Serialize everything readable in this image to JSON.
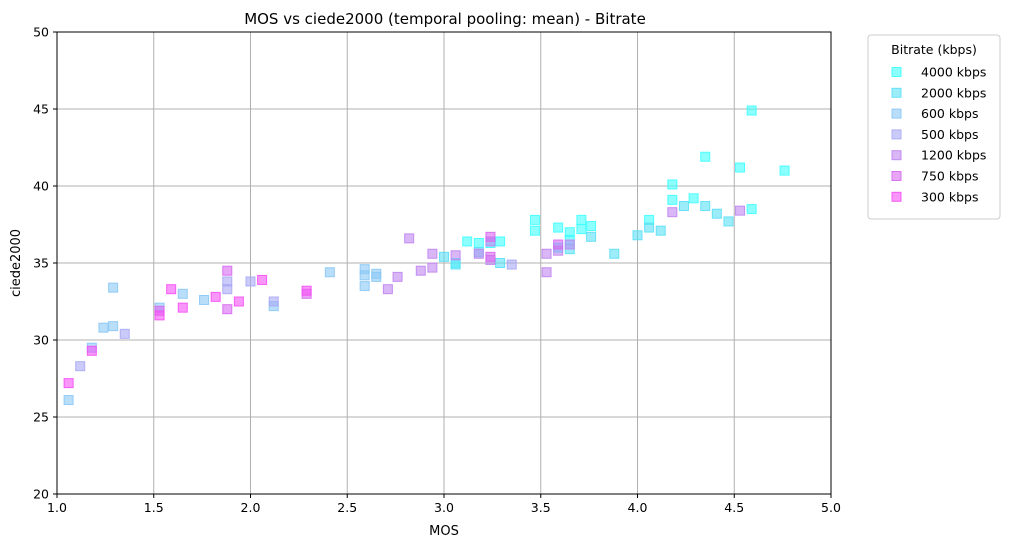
{
  "chart_data": {
    "type": "scatter",
    "title": "MOS vs ciede2000 (temporal pooling: mean) - Bitrate",
    "xlabel": "MOS",
    "ylabel": "ciede2000",
    "xlim": [
      1.0,
      5.0
    ],
    "ylim": [
      20,
      50
    ],
    "xticks": [
      "1.0",
      "1.5",
      "2.0",
      "2.5",
      "3.0",
      "3.5",
      "4.0",
      "4.5",
      "5.0"
    ],
    "yticks": [
      "20",
      "25",
      "30",
      "35",
      "40",
      "45",
      "50"
    ],
    "grid": true,
    "marker": "square",
    "legend": {
      "title": "Bitrate (kbps)",
      "placement": "outside-top-right"
    },
    "series": [
      {
        "name": "4000 kbps",
        "color": "#40ffff",
        "points": [
          [
            3.47,
            37.8
          ],
          [
            3.47,
            37.1
          ],
          [
            3.71,
            37.8
          ],
          [
            3.71,
            37.2
          ],
          [
            3.76,
            37.4
          ],
          [
            3.65,
            37.0
          ],
          [
            3.59,
            37.3
          ],
          [
            4.18,
            40.1
          ],
          [
            4.18,
            39.1
          ],
          [
            4.29,
            39.2
          ],
          [
            4.35,
            41.9
          ],
          [
            4.53,
            41.2
          ],
          [
            4.59,
            44.9
          ],
          [
            4.59,
            38.5
          ],
          [
            4.76,
            41.0
          ],
          [
            3.12,
            36.4
          ],
          [
            3.29,
            36.4
          ],
          [
            3.18,
            36.3
          ],
          [
            3.06,
            35.0
          ],
          [
            3.24,
            36.3
          ],
          [
            3.65,
            36.5
          ],
          [
            4.06,
            37.8
          ],
          [
            3.59,
            36.0
          ]
        ]
      },
      {
        "name": "2000 kbps",
        "color": "#5ce0f5",
        "points": [
          [
            3.0,
            35.4
          ],
          [
            3.06,
            34.9
          ],
          [
            3.29,
            35.0
          ],
          [
            3.88,
            35.6
          ],
          [
            4.0,
            36.8
          ],
          [
            4.06,
            37.3
          ],
          [
            4.12,
            37.1
          ],
          [
            4.24,
            38.7
          ],
          [
            4.35,
            38.7
          ],
          [
            4.41,
            38.2
          ],
          [
            4.47,
            37.7
          ],
          [
            3.76,
            36.7
          ],
          [
            3.65,
            35.9
          ],
          [
            3.18,
            35.7
          ]
        ]
      },
      {
        "name": "600 kbps",
        "color": "#8ac8f5",
        "points": [
          [
            1.06,
            26.1
          ],
          [
            1.29,
            33.4
          ],
          [
            1.24,
            30.8
          ],
          [
            1.29,
            30.9
          ],
          [
            1.18,
            29.5
          ],
          [
            1.65,
            33.0
          ],
          [
            1.53,
            32.1
          ],
          [
            1.76,
            32.6
          ],
          [
            2.12,
            32.2
          ],
          [
            2.41,
            34.4
          ],
          [
            2.59,
            34.6
          ],
          [
            2.59,
            34.2
          ],
          [
            2.59,
            33.5
          ],
          [
            2.65,
            34.3
          ],
          [
            2.65,
            34.1
          ]
        ]
      },
      {
        "name": "500 kbps",
        "color": "#a8a8f5",
        "points": [
          [
            1.12,
            28.3
          ],
          [
            1.35,
            30.4
          ],
          [
            1.88,
            33.8
          ],
          [
            2.0,
            33.8
          ],
          [
            2.12,
            32.5
          ],
          [
            3.35,
            34.9
          ],
          [
            1.88,
            33.3
          ]
        ]
      },
      {
        "name": "1200 kbps",
        "color": "#c085f0",
        "points": [
          [
            2.71,
            33.3
          ],
          [
            2.76,
            34.1
          ],
          [
            2.82,
            36.6
          ],
          [
            2.88,
            34.5
          ],
          [
            2.94,
            34.7
          ],
          [
            2.94,
            35.6
          ],
          [
            3.06,
            35.5
          ],
          [
            3.18,
            35.6
          ],
          [
            3.24,
            35.2
          ],
          [
            3.24,
            36.4
          ],
          [
            3.53,
            34.4
          ],
          [
            3.53,
            35.6
          ],
          [
            3.59,
            35.8
          ],
          [
            3.65,
            36.2
          ],
          [
            4.18,
            38.3
          ],
          [
            4.53,
            38.4
          ]
        ]
      },
      {
        "name": "750 kbps",
        "color": "#d868f0",
        "points": [
          [
            1.88,
            34.5
          ],
          [
            1.88,
            32.0
          ],
          [
            2.29,
            33.0
          ],
          [
            3.24,
            36.7
          ],
          [
            3.24,
            35.4
          ],
          [
            3.59,
            36.2
          ],
          [
            1.53,
            31.9
          ]
        ]
      },
      {
        "name": "300 kbps",
        "color": "#f550f5",
        "points": [
          [
            1.06,
            27.2
          ],
          [
            1.18,
            29.3
          ],
          [
            1.53,
            31.6
          ],
          [
            1.59,
            33.3
          ],
          [
            1.65,
            32.1
          ],
          [
            1.82,
            32.8
          ],
          [
            1.94,
            32.5
          ],
          [
            2.06,
            33.9
          ],
          [
            2.29,
            33.2
          ]
        ]
      }
    ]
  }
}
